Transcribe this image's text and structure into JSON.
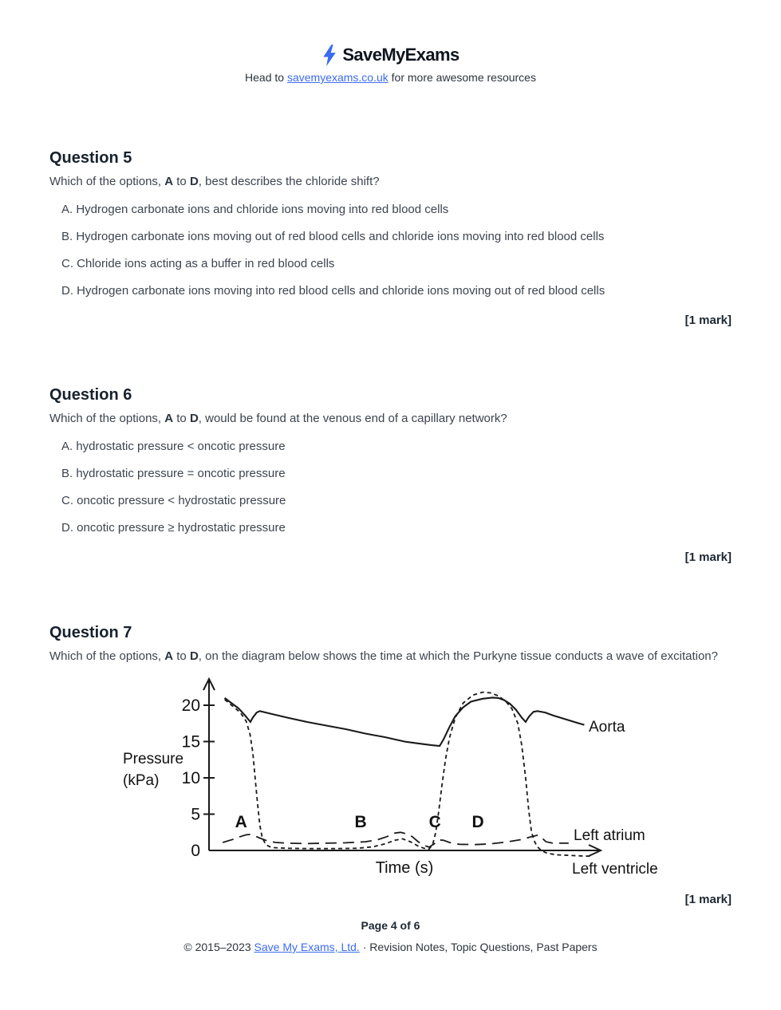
{
  "header": {
    "brand": "SaveMyExams",
    "tagline_prefix": "Head to ",
    "tagline_link": "savemyexams.co.uk",
    "tagline_suffix": " for more awesome resources",
    "brand_color": "#3b6af2",
    "link_color": "#3d6cf0"
  },
  "questions": [
    {
      "title": "Question 5",
      "intro": {
        "p1": "Which of the options, ",
        "b1": "A",
        "p2": " to ",
        "b2": "D",
        "p3": ", best describes the chloride shift?"
      },
      "options": [
        "A. Hydrogen carbonate ions and chloride ions moving into red blood cells",
        "B. Hydrogen carbonate ions moving out of red blood cells and chloride ions moving into red blood cells",
        "C. Chloride ions acting as a buffer in red blood cells",
        "D. Hydrogen carbonate ions moving into red blood cells and chloride ions moving out of red blood cells"
      ],
      "mark": "[1 mark]"
    },
    {
      "title": "Question 6",
      "intro": {
        "p1": "Which of the options, ",
        "b1": "A",
        "p2": " to ",
        "b2": "D",
        "p3": ", would be found at the venous end of a capillary network?"
      },
      "options": [
        "A. hydrostatic pressure < oncotic pressure",
        "B. hydrostatic pressure = oncotic pressure",
        "C. oncotic pressure < hydrostatic pressure",
        "D. oncotic pressure ≥ hydrostatic pressure"
      ],
      "mark": "[1 mark]"
    },
    {
      "title": "Question 7",
      "intro": {
        "p1": "Which of the options, ",
        "b1": "A",
        "p2": " to ",
        "b2": "D",
        "p3": ", on the diagram below shows the time at which the Purkyne tissue conducts a wave of excitation?"
      },
      "options": [],
      "mark": "[1 mark]"
    }
  ],
  "chart_data": {
    "type": "line",
    "title": "",
    "xlabel": "Time (s)",
    "ylabel": "Pressure (kPa)",
    "ylabel_line1": "Pressure",
    "ylabel_line2": "(kPa)",
    "ylim": [
      0,
      22
    ],
    "yticks": [
      0,
      5,
      10,
      15,
      20
    ],
    "grid": false,
    "legend_position": "right-of-curves",
    "annotations": [
      {
        "label": "A",
        "t": 0.082,
        "p": 4
      },
      {
        "label": "B",
        "t": 0.388,
        "p": 4
      },
      {
        "label": "C",
        "t": 0.578,
        "p": 4
      },
      {
        "label": "D",
        "t": 0.688,
        "p": 4
      }
    ],
    "series": [
      {
        "name": "Aorta",
        "line_style": "solid",
        "x": [
          0.04,
          0.055,
          0.075,
          0.092,
          0.106,
          0.112,
          0.122,
          0.13,
          0.16,
          0.2,
          0.25,
          0.3,
          0.35,
          0.4,
          0.45,
          0.5,
          0.54,
          0.57,
          0.59,
          0.6,
          0.615,
          0.63,
          0.65,
          0.67,
          0.7,
          0.725,
          0.74,
          0.755,
          0.77,
          0.785,
          0.8,
          0.81,
          0.818,
          0.83,
          0.84,
          0.86,
          0.88,
          0.91,
          0.94,
          0.96
        ],
        "y": [
          21.0,
          20.4,
          19.6,
          18.6,
          17.7,
          18.3,
          19.0,
          19.2,
          18.8,
          18.3,
          17.7,
          17.2,
          16.7,
          16.1,
          15.6,
          15.0,
          14.7,
          14.5,
          14.4,
          15.3,
          17.0,
          18.5,
          19.7,
          20.5,
          20.9,
          21.05,
          21.0,
          20.7,
          20.2,
          19.4,
          18.3,
          17.7,
          18.4,
          19.1,
          19.2,
          19.0,
          18.6,
          18.1,
          17.6,
          17.3
        ]
      },
      {
        "name": "Left atrium",
        "line_style": "dash-long",
        "x": [
          0.035,
          0.06,
          0.08,
          0.095,
          0.105,
          0.115,
          0.13,
          0.15,
          0.17,
          0.2,
          0.25,
          0.3,
          0.35,
          0.4,
          0.43,
          0.455,
          0.475,
          0.49,
          0.505,
          0.52,
          0.535,
          0.55,
          0.563,
          0.576,
          0.588,
          0.6,
          0.615,
          0.64,
          0.68,
          0.72,
          0.76,
          0.8,
          0.825,
          0.841,
          0.852,
          0.862,
          0.88,
          0.92
        ],
        "y": [
          1.1,
          1.5,
          1.9,
          2.15,
          2.2,
          2.05,
          1.7,
          1.3,
          1.1,
          1.0,
          0.95,
          1.0,
          1.05,
          1.2,
          1.45,
          1.9,
          2.4,
          2.5,
          2.3,
          1.9,
          1.2,
          0.7,
          0.45,
          0.9,
          1.45,
          1.4,
          1.1,
          0.85,
          0.8,
          0.9,
          1.15,
          1.5,
          1.9,
          2.1,
          1.7,
          1.2,
          1.0,
          1.0
        ]
      },
      {
        "name": "Left ventricle",
        "line_style": "dash-fine",
        "x": [
          0.04,
          0.06,
          0.08,
          0.095,
          0.105,
          0.112,
          0.118,
          0.124,
          0.13,
          0.136,
          0.145,
          0.16,
          0.2,
          0.26,
          0.32,
          0.38,
          0.42,
          0.45,
          0.475,
          0.495,
          0.515,
          0.535,
          0.55,
          0.563,
          0.572,
          0.58,
          0.588,
          0.596,
          0.605,
          0.615,
          0.63,
          0.65,
          0.675,
          0.7,
          0.72,
          0.74,
          0.76,
          0.775,
          0.79,
          0.8,
          0.81,
          0.818,
          0.825,
          0.833,
          0.84,
          0.85,
          0.865,
          0.89,
          0.93,
          0.975
        ],
        "y": [
          20.8,
          19.9,
          19.0,
          17.8,
          16.0,
          13.5,
          10.0,
          6.5,
          3.5,
          1.8,
          0.8,
          0.4,
          0.3,
          0.25,
          0.25,
          0.3,
          0.5,
          0.9,
          1.4,
          1.6,
          1.2,
          0.6,
          0.3,
          0.2,
          0.8,
          2.5,
          5.5,
          9.0,
          12.5,
          15.5,
          18.3,
          20.3,
          21.4,
          21.8,
          21.7,
          21.3,
          20.5,
          19.5,
          17.5,
          14.5,
          10.0,
          5.5,
          2.5,
          1.2,
          0.5,
          0.0,
          -0.4,
          -0.6,
          -0.7,
          -0.8
        ]
      }
    ]
  },
  "footer": {
    "page": "Page 4 of 6",
    "copy_prefix": "© 2015–2023 ",
    "copy_link": "Save My Exams, Ltd.",
    "copy_suffix": " · Revision Notes, Topic Questions, Past Papers"
  }
}
